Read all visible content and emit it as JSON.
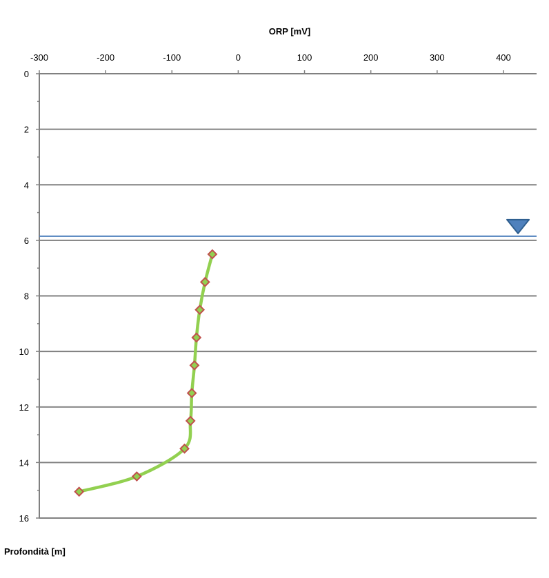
{
  "chart_data": {
    "type": "line",
    "title": "",
    "xlabel": "ORP [mV]",
    "ylabel": "Profondità [m]",
    "x_axis_position": "top",
    "y_axis_inverted": true,
    "xlim": [
      -300,
      450
    ],
    "ylim": [
      0,
      16
    ],
    "x_ticks": [
      -300,
      -200,
      -100,
      0,
      100,
      200,
      300,
      400
    ],
    "y_ticks": [
      0,
      2,
      4,
      6,
      8,
      10,
      12,
      14,
      16
    ],
    "y_minor_step": 1,
    "grid": "horizontal major",
    "series": [
      {
        "x": [
          -39,
          -50,
          -58,
          -63,
          -66,
          -70,
          -72,
          -81,
          -153,
          -240
        ],
        "y": [
          6.5,
          7.5,
          8.5,
          9.5,
          10.5,
          11.5,
          12.5,
          13.5,
          14.5,
          15.05
        ],
        "color": "#92d050",
        "marker": "diamond",
        "marker_edge_color": "#c0504d",
        "smooth": true
      }
    ],
    "water_level": {
      "y": 5.85,
      "line_color": "#4f81bd",
      "marker": "inverted-triangle",
      "marker_color": "#4f81bd",
      "marker_x": 422
    }
  }
}
